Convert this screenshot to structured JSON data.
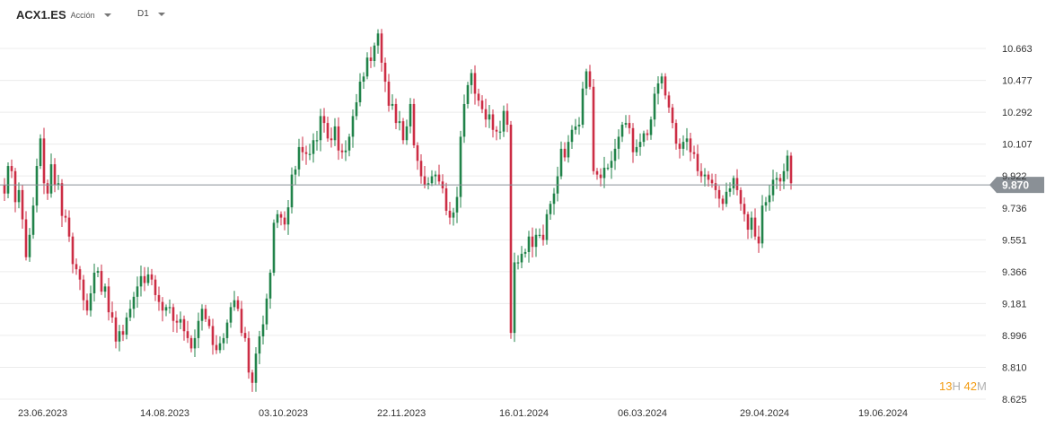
{
  "header": {
    "symbol": "ACX1.ES",
    "instrument_type": "Acción",
    "timeframe": "D1",
    "symbol_caret_icon": "caret-down-icon",
    "timeframe_caret_icon": "caret-down-icon"
  },
  "timer": {
    "hours": "13",
    "hours_unit": "H",
    "minutes": "42",
    "minutes_unit": "M"
  },
  "colors": {
    "up": "#21834a",
    "down": "#cc2d45",
    "price_line": "#8a9096",
    "price_badge": "#8a9096",
    "grid": "#ececec"
  },
  "chart_data": {
    "type": "candlestick",
    "symbol": "ACX1.ES",
    "timeframe": "D1",
    "last_price": 9.87,
    "last_price_label": "9.870",
    "ylim": [
      8.625,
      10.72
    ],
    "y_ticks": [
      "10.663",
      "10.477",
      "10.292",
      "10.107",
      "9.922",
      "9.736",
      "9.551",
      "9.366",
      "9.181",
      "8.996",
      "8.810",
      "8.625"
    ],
    "x_ticks": [
      "23.06.2023",
      "14.08.2023",
      "03.10.2023",
      "22.11.2023",
      "16.01.2024",
      "06.03.2024",
      "29.04.2024",
      "19.06.2024"
    ],
    "x_tick_candle_index": [
      4,
      38,
      71,
      104,
      138,
      171,
      205,
      238
    ],
    "grid": true,
    "closes": [
      9.82,
      9.98,
      9.95,
      9.77,
      9.84,
      9.67,
      9.45,
      9.58,
      9.75,
      9.98,
      10.14,
      9.88,
      9.82,
      9.99,
      9.87,
      9.88,
      9.69,
      9.68,
      9.57,
      9.41,
      9.38,
      9.32,
      9.2,
      9.14,
      9.24,
      9.36,
      9.37,
      9.25,
      9.28,
      9.13,
      9.1,
      8.96,
      9.02,
      9.0,
      9.1,
      9.15,
      9.22,
      9.28,
      9.34,
      9.3,
      9.35,
      9.32,
      9.23,
      9.19,
      9.14,
      9.16,
      9.16,
      9.08,
      9.07,
      9.09,
      9.02,
      8.98,
      8.92,
      8.98,
      9.08,
      9.15,
      9.09,
      9.05,
      8.94,
      8.91,
      8.95,
      8.98,
      9.07,
      9.16,
      9.2,
      9.15,
      9.01,
      8.98,
      8.78,
      8.72,
      8.89,
      8.99,
      9.06,
      9.21,
      9.36,
      9.65,
      9.7,
      9.68,
      9.64,
      9.74,
      9.93,
      9.96,
      10.09,
      10.06,
      10.05,
      10.05,
      10.13,
      10.13,
      10.27,
      10.23,
      10.14,
      10.13,
      10.21,
      10.07,
      10.06,
      10.07,
      10.15,
      10.27,
      10.35,
      10.47,
      10.5,
      10.61,
      10.59,
      10.68,
      10.75,
      10.58,
      10.47,
      10.33,
      10.34,
      10.23,
      10.24,
      10.13,
      10.21,
      10.34,
      10.1,
      10.01,
      9.92,
      9.87,
      9.88,
      9.92,
      9.93,
      9.89,
      9.85,
      9.72,
      9.68,
      9.71,
      9.8,
      10.15,
      10.34,
      10.45,
      10.52,
      10.4,
      10.36,
      10.31,
      10.25,
      10.28,
      10.19,
      10.18,
      10.18,
      10.3,
      10.22,
      9.01,
      9.42,
      9.42,
      9.47,
      9.48,
      9.57,
      9.51,
      9.58,
      9.58,
      9.55,
      9.7,
      9.76,
      9.82,
      9.92,
      10.08,
      10.03,
      10.12,
      10.19,
      10.21,
      10.22,
      10.43,
      10.53,
      10.44,
      9.95,
      9.93,
      9.91,
      9.97,
      9.97,
      10.01,
      10.08,
      10.15,
      10.22,
      10.23,
      10.2,
      10.06,
      10.09,
      10.12,
      10.17,
      10.16,
      10.25,
      10.4,
      10.46,
      10.5,
      10.39,
      10.32,
      10.23,
      10.11,
      10.08,
      10.12,
      10.14,
      10.06,
      10.05,
      9.95,
      9.92,
      9.93,
      9.9,
      9.88,
      9.84,
      9.79,
      9.76,
      9.83,
      9.85,
      9.91,
      9.84,
      9.76,
      9.7,
      9.61,
      9.68,
      9.57,
      9.53,
      9.75,
      9.77,
      9.81,
      9.9,
      9.91,
      9.89,
      9.95,
      10.04,
      9.88
    ]
  }
}
